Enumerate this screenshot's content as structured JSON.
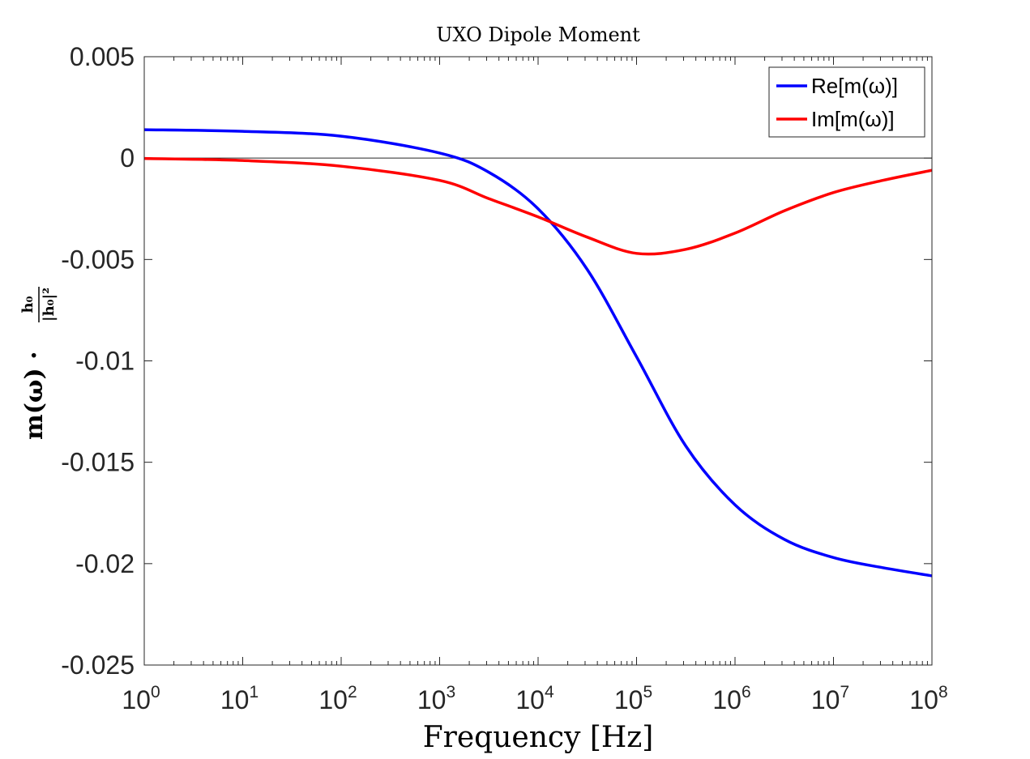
{
  "chart_data": {
    "type": "line",
    "title": "UXO Dipole Moment",
    "xlabel": "Frequency [Hz]",
    "ylabel_main": "m(ω) ·",
    "ylabel_frac_num": "h₀",
    "ylabel_frac_den": "|h₀|²",
    "xscale": "log",
    "xlim": [
      1,
      100000000
    ],
    "ylim": [
      -0.025,
      0.005
    ],
    "x_ticks": [
      {
        "base": "10",
        "exp": "0",
        "value": 1
      },
      {
        "base": "10",
        "exp": "1",
        "value": 10
      },
      {
        "base": "10",
        "exp": "2",
        "value": 100
      },
      {
        "base": "10",
        "exp": "3",
        "value": 1000
      },
      {
        "base": "10",
        "exp": "4",
        "value": 10000
      },
      {
        "base": "10",
        "exp": "5",
        "value": 100000
      },
      {
        "base": "10",
        "exp": "6",
        "value": 1000000
      },
      {
        "base": "10",
        "exp": "7",
        "value": 10000000
      },
      {
        "base": "10",
        "exp": "8",
        "value": 100000000
      }
    ],
    "y_ticks": [
      {
        "label": "0.005",
        "value": 0.005
      },
      {
        "label": "0",
        "value": 0
      },
      {
        "label": "-0.005",
        "value": -0.005
      },
      {
        "label": "-0.01",
        "value": -0.01
      },
      {
        "label": "-0.015",
        "value": -0.015
      },
      {
        "label": "-0.02",
        "value": -0.02
      },
      {
        "label": "-0.025",
        "value": -0.025
      }
    ],
    "zero_line": true,
    "grid": false,
    "legend_position": "top-right",
    "series": [
      {
        "name": "Re[m(ω)]",
        "color": "#0000ff",
        "x": [
          1,
          10,
          100,
          1000,
          3162,
          10000,
          31623,
          100000,
          316228,
          1000000,
          3162278,
          10000000,
          31622777,
          100000000
        ],
        "y": [
          0.0014,
          0.00132,
          0.00108,
          0.00025,
          -0.0007,
          -0.0025,
          -0.0055,
          -0.0098,
          -0.0142,
          -0.0171,
          -0.0188,
          -0.0197,
          -0.0202,
          -0.0206
        ]
      },
      {
        "name": "Im[m(ω)]",
        "color": "#ff0000",
        "x": [
          1,
          10,
          100,
          1000,
          3162,
          10000,
          31623,
          100000,
          316228,
          1000000,
          3162278,
          10000000,
          31622777,
          100000000
        ],
        "y": [
          -2e-05,
          -0.00012,
          -0.0004,
          -0.0011,
          -0.002,
          -0.0029,
          -0.0039,
          -0.0047,
          -0.0045,
          -0.0037,
          -0.0026,
          -0.0017,
          -0.0011,
          -0.0006
        ]
      }
    ]
  }
}
